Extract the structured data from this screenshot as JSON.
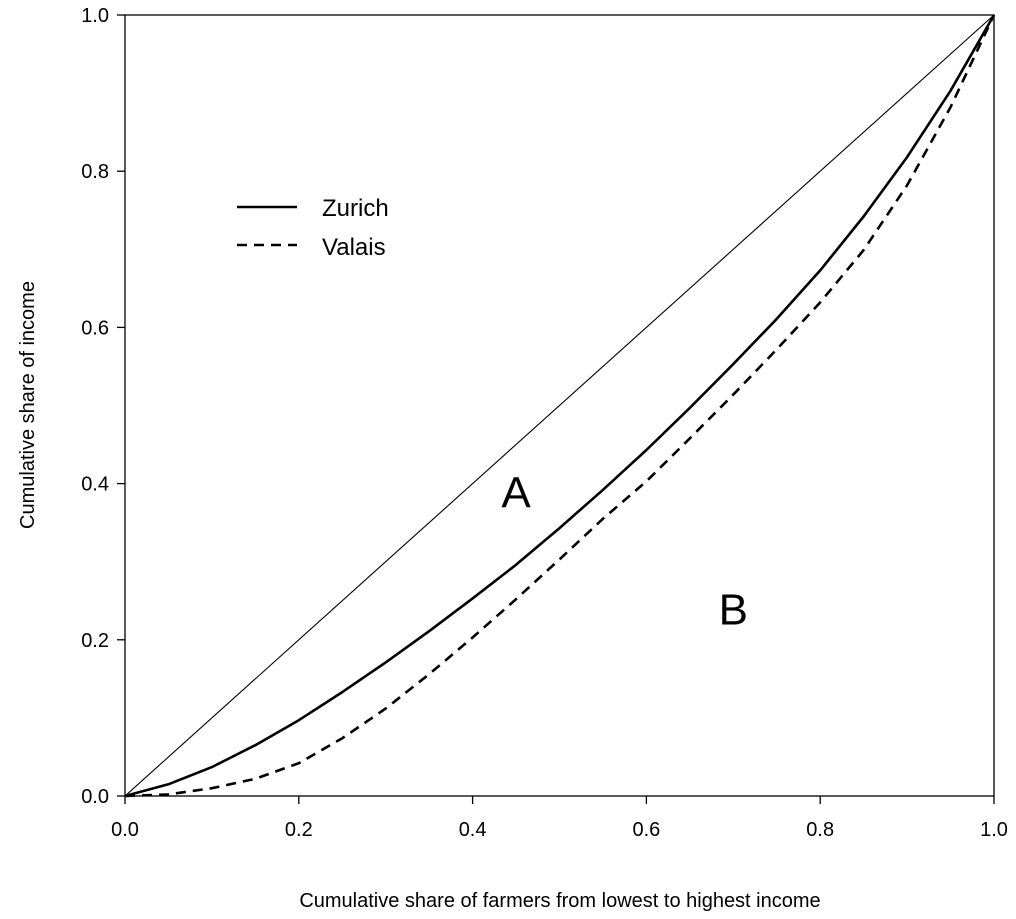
{
  "chart_data": {
    "type": "line",
    "xlabel": "Cumulative share of farmers from lowest to highest income",
    "ylabel": "Cumulative share of income",
    "xlim": [
      0.0,
      1.0
    ],
    "ylim": [
      0.0,
      1.0
    ],
    "x_ticks": [
      "0.0",
      "0.2",
      "0.4",
      "0.6",
      "0.8",
      "1.0"
    ],
    "y_ticks": [
      "0.0",
      "0.2",
      "0.4",
      "0.6",
      "0.8",
      "1.0"
    ],
    "grid": false,
    "legend_position": "upper-left",
    "equality_line": {
      "x": [
        0,
        1
      ],
      "y": [
        0,
        1
      ],
      "style": "solid-thin"
    },
    "series": [
      {
        "name": "Zurich",
        "style": "solid",
        "x": [
          0,
          0.05,
          0.1,
          0.15,
          0.2,
          0.25,
          0.3,
          0.35,
          0.4,
          0.45,
          0.5,
          0.55,
          0.6,
          0.65,
          0.7,
          0.75,
          0.8,
          0.85,
          0.9,
          0.95,
          1.0
        ],
        "y": [
          0,
          0.015,
          0.037,
          0.065,
          0.097,
          0.133,
          0.171,
          0.211,
          0.253,
          0.296,
          0.343,
          0.392,
          0.443,
          0.497,
          0.553,
          0.611,
          0.673,
          0.742,
          0.818,
          0.903,
          1.0
        ]
      },
      {
        "name": "Valais",
        "style": "dashed",
        "x": [
          0,
          0.05,
          0.1,
          0.15,
          0.2,
          0.25,
          0.3,
          0.35,
          0.4,
          0.45,
          0.5,
          0.55,
          0.6,
          0.65,
          0.7,
          0.75,
          0.8,
          0.85,
          0.9,
          0.95,
          1.0
        ],
        "y": [
          0,
          0.002,
          0.01,
          0.022,
          0.042,
          0.074,
          0.112,
          0.156,
          0.203,
          0.252,
          0.303,
          0.355,
          0.403,
          0.458,
          0.514,
          0.572,
          0.632,
          0.699,
          0.782,
          0.882,
          1.0
        ]
      }
    ],
    "annotations": [
      {
        "text": "A",
        "x": 0.45,
        "y": 0.39
      },
      {
        "text": "B",
        "x": 0.7,
        "y": 0.24
      }
    ]
  }
}
